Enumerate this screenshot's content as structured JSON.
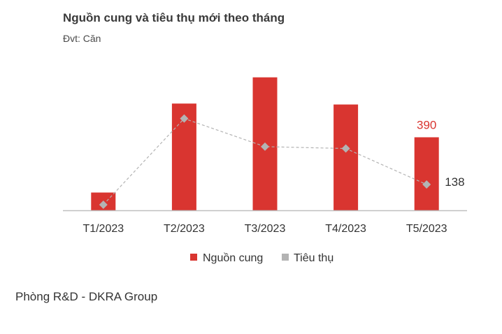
{
  "title": "Nguồn cung và tiêu thụ mới theo tháng",
  "unit_label": "Đvt: Căn",
  "source": "Phòng R&D - DKRA Group",
  "colors": {
    "supply": "#d93530",
    "consumption": "#b3b3b3",
    "axis": "#bfbfbf",
    "text": "#333333"
  },
  "chart_data": {
    "type": "bar",
    "categories": [
      "T1/2023",
      "T2/2023",
      "T3/2023",
      "T4/2023",
      "T5/2023"
    ],
    "series": [
      {
        "name": "Nguồn cung",
        "type": "bar",
        "values": [
          95,
          570,
          710,
          565,
          390
        ],
        "labels": [
          "",
          "",
          "",
          "",
          "390"
        ]
      },
      {
        "name": "Tiêu thụ",
        "type": "line",
        "values": [
          30,
          490,
          340,
          330,
          138
        ],
        "labels": [
          "",
          "",
          "",
          "",
          "138"
        ]
      }
    ],
    "ylim": [
      0,
      720
    ],
    "grid": false,
    "legend": "bottom"
  }
}
